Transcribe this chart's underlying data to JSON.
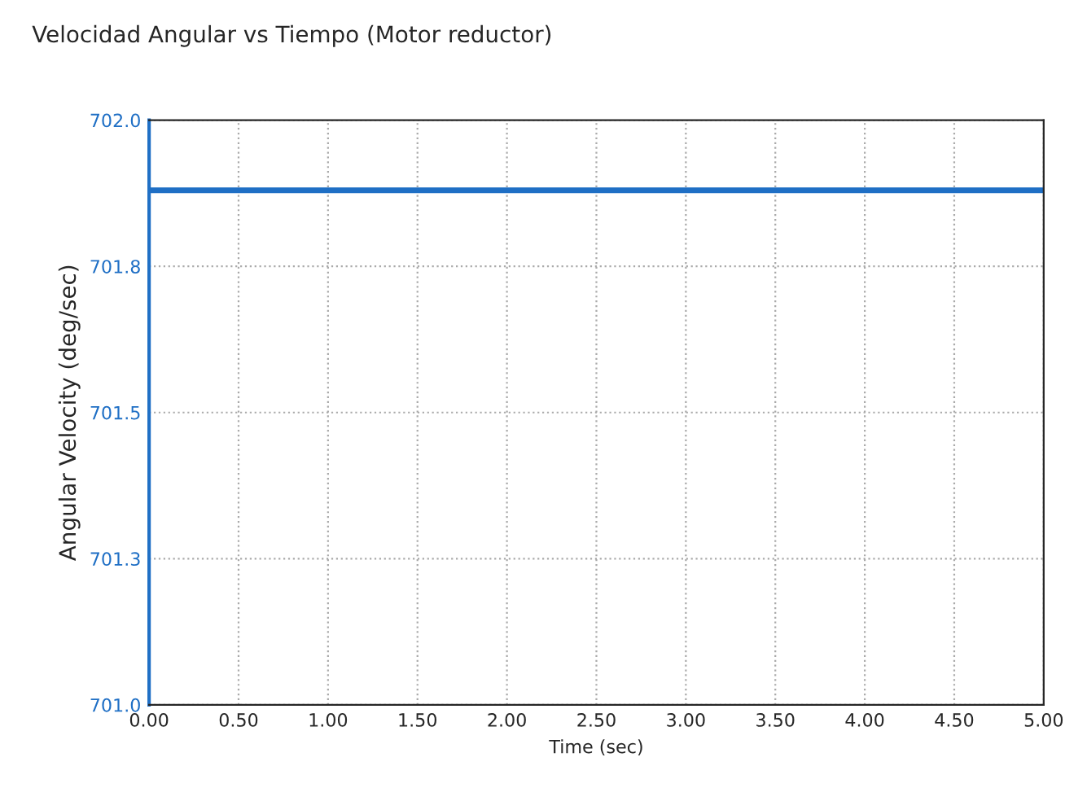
{
  "chart_data": {
    "type": "line",
    "title": "Velocidad Angular vs Tiempo (Motor reductor)",
    "xlabel": "Time (sec)",
    "ylabel": "Angular Velocity (deg/sec)",
    "series": [
      {
        "color": "#1f6fc5",
        "x": [
          0,
          5
        ],
        "values": [
          701.88,
          701.88
        ]
      }
    ],
    "xlim": [
      0,
      5
    ],
    "xticks": [
      {
        "value": 0,
        "label": "0.00"
      },
      {
        "value": 0.5,
        "label": "0.50"
      },
      {
        "value": 1,
        "label": "1.00"
      },
      {
        "value": 1.5,
        "label": "1.50"
      },
      {
        "value": 2,
        "label": "2.00"
      },
      {
        "value": 2.5,
        "label": "2.50"
      },
      {
        "value": 3,
        "label": "3.00"
      },
      {
        "value": 3.5,
        "label": "3.50"
      },
      {
        "value": 4,
        "label": "4.00"
      },
      {
        "value": 4.5,
        "label": "4.50"
      },
      {
        "value": 5,
        "label": "5.00"
      }
    ],
    "ylim": [
      701.0,
      702.0
    ],
    "yticks": [
      {
        "value": 701.0,
        "label": "701.0"
      },
      {
        "value": 701.25,
        "label": "701.3"
      },
      {
        "value": 701.5,
        "label": "701.5"
      },
      {
        "value": 701.75,
        "label": "701.8"
      },
      {
        "value": 702.0,
        "label": "702.0"
      }
    ],
    "grid": true,
    "marker": "none",
    "line_style": "solid"
  }
}
